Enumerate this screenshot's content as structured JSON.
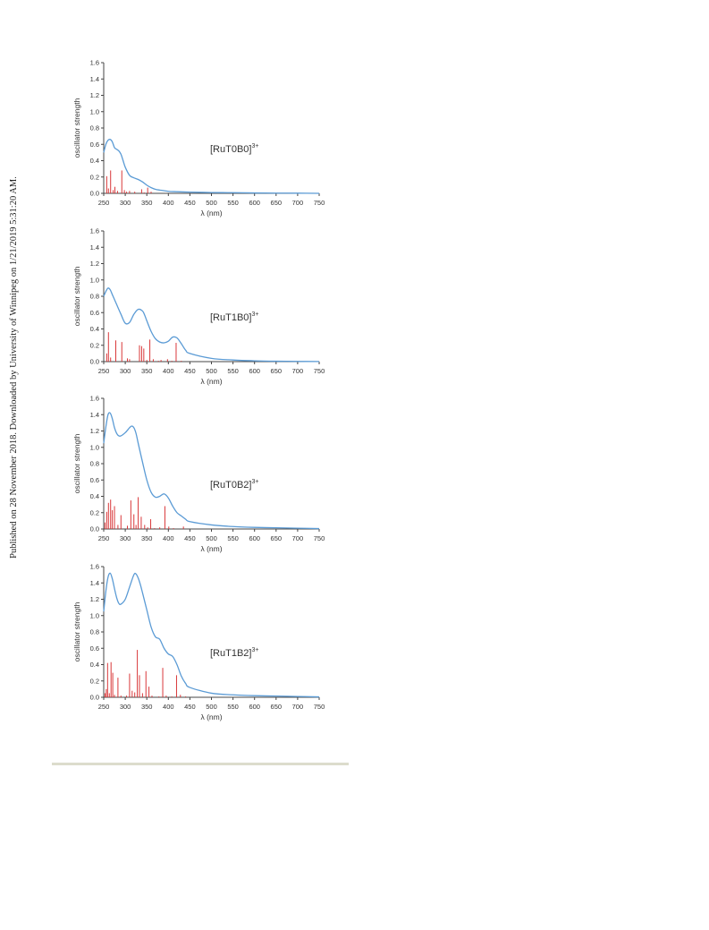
{
  "watermark": "Published on 28 November 2018. Downloaded by University of Winnipeg on 1/21/2019 5:31:20 AM.",
  "colors": {
    "curve": "#5b9bd5",
    "sticks": "#d9383a",
    "axis": "#444444"
  },
  "chart_data": [
    {
      "type": "line",
      "title": "[RuT0B0]3+",
      "label_main": "[RuT0B0]",
      "label_sup": "3+",
      "xlabel": "λ (nm)",
      "ylabel": "oscillator strength",
      "xlim": [
        250,
        750
      ],
      "ylim": [
        0,
        1.6
      ],
      "xticks": [
        "250",
        "300",
        "350",
        "400",
        "450",
        "500",
        "550",
        "600",
        "650",
        "700",
        "750"
      ],
      "yticks": [
        "0.0",
        "0.2",
        "0.4",
        "0.6",
        "0.8",
        "1.0",
        "1.2",
        "1.4",
        "1.6"
      ],
      "spectrum": {
        "x": [
          250,
          255,
          260,
          265,
          270,
          275,
          280,
          285,
          290,
          295,
          300,
          310,
          320,
          330,
          340,
          350,
          360,
          370,
          380,
          400,
          420,
          450,
          500,
          550,
          600,
          650,
          700,
          750
        ],
        "y": [
          0.5,
          0.6,
          0.65,
          0.66,
          0.63,
          0.56,
          0.54,
          0.52,
          0.48,
          0.4,
          0.32,
          0.22,
          0.19,
          0.17,
          0.14,
          0.1,
          0.07,
          0.05,
          0.04,
          0.025,
          0.02,
          0.015,
          0.01,
          0.008,
          0.005,
          0.003,
          0.002,
          0.0
        ]
      },
      "transitions": {
        "x": [
          257,
          261,
          266,
          272,
          276,
          282,
          292,
          298,
          303,
          310,
          322,
          338,
          344,
          352,
          360
        ],
        "f": [
          0.21,
          0.06,
          0.28,
          0.04,
          0.08,
          0.03,
          0.28,
          0.04,
          0.02,
          0.03,
          0.02,
          0.05,
          0.01,
          0.07,
          0.02
        ]
      }
    },
    {
      "type": "line",
      "title": "[RuT1B0]3+",
      "label_main": "[RuT1B0]",
      "label_sup": "3+",
      "xlabel": "λ (nm)",
      "ylabel": "oscillator strength",
      "xlim": [
        250,
        750
      ],
      "ylim": [
        0,
        1.6
      ],
      "xticks": [
        "250",
        "300",
        "350",
        "400",
        "450",
        "500",
        "550",
        "600",
        "650",
        "700",
        "750"
      ],
      "yticks": [
        "0.0",
        "0.2",
        "0.4",
        "0.6",
        "0.8",
        "1.0",
        "1.2",
        "1.4",
        "1.6"
      ],
      "spectrum": {
        "x": [
          250,
          255,
          260,
          265,
          270,
          275,
          280,
          290,
          300,
          310,
          320,
          330,
          340,
          345,
          350,
          360,
          370,
          380,
          390,
          400,
          410,
          420,
          430,
          440,
          450,
          500,
          550,
          600,
          650,
          700,
          750
        ],
        "y": [
          0.8,
          0.86,
          0.9,
          0.88,
          0.82,
          0.76,
          0.7,
          0.58,
          0.47,
          0.48,
          0.58,
          0.64,
          0.62,
          0.57,
          0.5,
          0.37,
          0.28,
          0.24,
          0.23,
          0.25,
          0.3,
          0.29,
          0.22,
          0.14,
          0.1,
          0.04,
          0.02,
          0.01,
          0.005,
          0.003,
          0.001
        ]
      },
      "transitions": {
        "x": [
          257,
          261,
          266,
          278,
          292,
          305,
          310,
          333,
          338,
          343,
          350,
          357,
          365,
          377,
          383,
          398,
          408,
          418,
          430
        ],
        "f": [
          0.1,
          0.36,
          0.05,
          0.26,
          0.24,
          0.04,
          0.03,
          0.2,
          0.19,
          0.16,
          0.02,
          0.27,
          0.03,
          0.01,
          0.02,
          0.03,
          0.01,
          0.23,
          0.01
        ]
      }
    },
    {
      "type": "line",
      "title": "[RuT0B2]3+",
      "label_main": "[RuT0B2]",
      "label_sup": "3+",
      "xlabel": "λ (nm)",
      "ylabel": "oscillator strength",
      "xlim": [
        250,
        750
      ],
      "ylim": [
        0,
        1.6
      ],
      "xticks": [
        "250",
        "300",
        "350",
        "400",
        "450",
        "500",
        "550",
        "600",
        "650",
        "700",
        "750"
      ],
      "yticks": [
        "0.0",
        "0.2",
        "0.4",
        "0.6",
        "0.8",
        "1.0",
        "1.2",
        "1.4",
        "1.6"
      ],
      "spectrum": {
        "x": [
          250,
          255,
          260,
          265,
          270,
          275,
          280,
          285,
          290,
          300,
          310,
          315,
          320,
          325,
          330,
          340,
          350,
          360,
          370,
          380,
          390,
          400,
          410,
          420,
          430,
          440,
          450,
          500,
          550,
          600,
          650,
          700,
          750
        ],
        "y": [
          1.05,
          1.25,
          1.4,
          1.42,
          1.35,
          1.24,
          1.17,
          1.14,
          1.14,
          1.18,
          1.24,
          1.26,
          1.24,
          1.17,
          1.05,
          0.82,
          0.6,
          0.45,
          0.39,
          0.4,
          0.43,
          0.38,
          0.28,
          0.2,
          0.16,
          0.12,
          0.09,
          0.05,
          0.03,
          0.02,
          0.015,
          0.01,
          0.005
        ]
      },
      "transitions": {
        "x": [
          253,
          257,
          261,
          266,
          270,
          275,
          283,
          290,
          305,
          313,
          320,
          325,
          330,
          337,
          345,
          352,
          359,
          368,
          380,
          392,
          401,
          412,
          435
        ],
        "f": [
          0.08,
          0.21,
          0.32,
          0.36,
          0.23,
          0.28,
          0.05,
          0.17,
          0.04,
          0.35,
          0.18,
          0.05,
          0.39,
          0.15,
          0.05,
          0.02,
          0.12,
          0.01,
          0.02,
          0.28,
          0.03,
          0.01,
          0.03
        ]
      }
    },
    {
      "type": "line",
      "title": "[RuT1B2]3+",
      "label_main": "[RuT1B2]",
      "label_sup": "3+",
      "xlabel": "λ (nm)",
      "ylabel": "oscillator strength",
      "xlim": [
        250,
        750
      ],
      "ylim": [
        0,
        1.6
      ],
      "xticks": [
        "250",
        "300",
        "350",
        "400",
        "450",
        "500",
        "550",
        "600",
        "650",
        "700",
        "750"
      ],
      "yticks": [
        "0.0",
        "0.2",
        "0.4",
        "0.6",
        "0.8",
        "1.0",
        "1.2",
        "1.4",
        "1.6"
      ],
      "spectrum": {
        "x": [
          250,
          255,
          260,
          265,
          270,
          275,
          280,
          285,
          290,
          300,
          310,
          320,
          325,
          330,
          335,
          340,
          350,
          360,
          370,
          380,
          390,
          400,
          410,
          420,
          430,
          440,
          450,
          500,
          550,
          600,
          650,
          700,
          750
        ],
        "y": [
          1.05,
          1.3,
          1.47,
          1.52,
          1.45,
          1.33,
          1.22,
          1.15,
          1.14,
          1.2,
          1.35,
          1.5,
          1.51,
          1.46,
          1.38,
          1.28,
          1.07,
          0.86,
          0.74,
          0.71,
          0.6,
          0.53,
          0.5,
          0.4,
          0.26,
          0.17,
          0.12,
          0.05,
          0.03,
          0.02,
          0.015,
          0.01,
          0.005
        ]
      },
      "transitions": {
        "x": [
          253,
          256,
          259,
          263,
          267,
          271,
          275,
          283,
          290,
          303,
          310,
          316,
          322,
          328,
          333,
          340,
          348,
          355,
          362,
          378,
          387,
          395,
          408,
          419,
          428,
          440
        ],
        "f": [
          0.05,
          0.1,
          0.42,
          0.05,
          0.43,
          0.3,
          0.03,
          0.24,
          0.02,
          0.02,
          0.29,
          0.08,
          0.06,
          0.58,
          0.27,
          0.05,
          0.32,
          0.13,
          0.02,
          0.01,
          0.36,
          0.02,
          0.01,
          0.27,
          0.03,
          0.01
        ]
      }
    }
  ]
}
